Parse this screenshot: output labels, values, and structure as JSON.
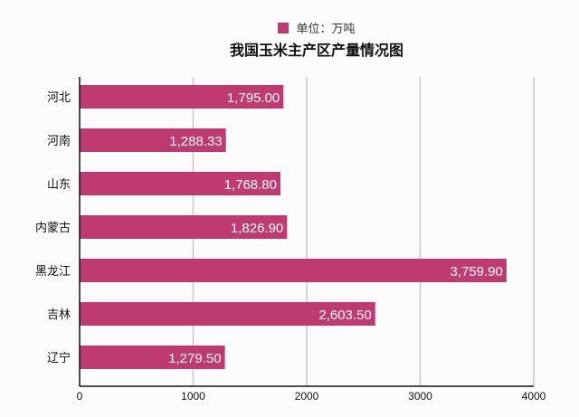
{
  "chart_data": {
    "type": "bar",
    "orientation": "horizontal",
    "title": "我国玉米主产区产量情况图",
    "legend": {
      "label": "单位：万吨",
      "placement": "top"
    },
    "categories": [
      "河北",
      "河南",
      "山东",
      "内蒙古",
      "黑龙江",
      "吉林",
      "辽宁"
    ],
    "values": [
      1795.0,
      1288.33,
      1768.8,
      1826.9,
      3759.9,
      2603.5,
      1279.5
    ],
    "value_labels": [
      "1,795.00",
      "1,288.33",
      "1,768.80",
      "1,826.90",
      "3,759.90",
      "2,603.50",
      "1,279.50"
    ],
    "xlim": [
      0,
      4000
    ],
    "xticks": [
      "0",
      "1000",
      "2000",
      "3000",
      "4000"
    ],
    "grid": true,
    "color": "#c03a72"
  }
}
